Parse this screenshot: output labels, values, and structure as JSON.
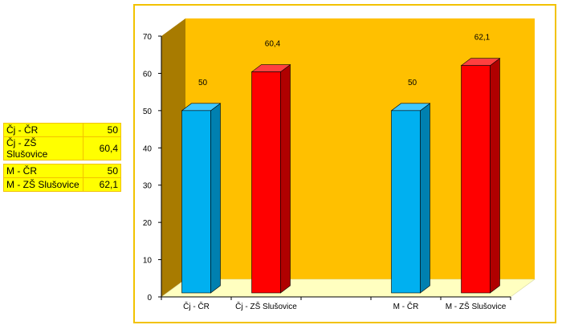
{
  "tables": [
    {
      "rows": [
        {
          "label": "Čj - ČR",
          "value": "50"
        },
        {
          "label": "Čj - ZŠ Slušovice",
          "value": "60,4"
        }
      ]
    },
    {
      "rows": [
        {
          "label": "M - ČR",
          "value": "50"
        },
        {
          "label": "M - ZŠ Slušovice",
          "value": "62,1"
        }
      ]
    }
  ],
  "colors": {
    "back_wall": "#ffc000",
    "side_wall": "#a87b00",
    "floor": "#ffffc0",
    "blue_bar": "#00b0f0",
    "red_bar": "#ff0000",
    "table_fill": "#ffff00"
  },
  "chart_data": {
    "type": "bar",
    "title": "",
    "xlabel": "",
    "ylabel": "",
    "ylim": [
      0,
      70
    ],
    "yticks": [
      "0",
      "10",
      "20",
      "30",
      "40",
      "50",
      "60",
      "70"
    ],
    "categories": [
      "Čj - ČR",
      "Čj - ZŠ Slušovice",
      "",
      "M - ČR",
      "M - ZŠ Slušovice"
    ],
    "values": [
      50,
      60.4,
      null,
      50,
      62.1
    ],
    "value_labels": [
      "50",
      "60,4",
      "",
      "50",
      "62,1"
    ],
    "bar_colors": [
      "blue",
      "red",
      "",
      "blue",
      "red"
    ],
    "grid": false,
    "legend": "none",
    "three_d": true
  }
}
